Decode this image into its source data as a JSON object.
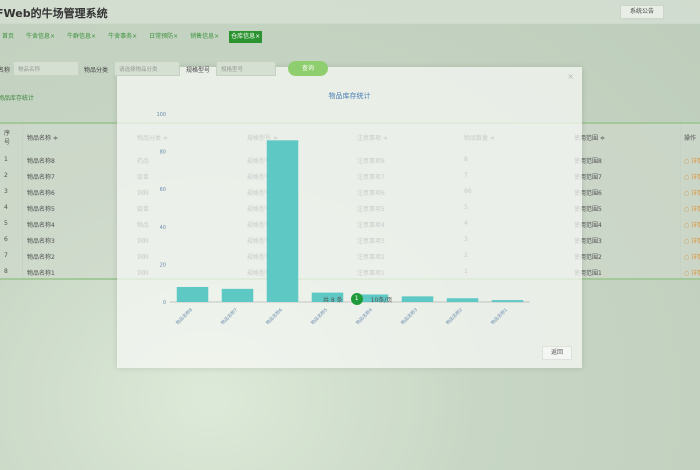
{
  "header": {
    "title": "FWeb的牛场管理系统",
    "notice_button": "系统公告"
  },
  "tabs": [
    "首页",
    "牛舍信息×",
    "牛群信息×",
    "牛舍事务×",
    "日常预防×",
    "销售信息×",
    "仓库信息×"
  ],
  "search": {
    "name_label": "名称",
    "name_placeholder": "物品名称",
    "category_label": "物品分类",
    "category_placeholder": "请选择物品分类",
    "spec_label": "规格型号",
    "spec_placeholder": "规格型号",
    "query_button": "查询"
  },
  "stat_button": "物品库存统计",
  "table": {
    "headers": [
      "序号",
      "物品名称 ≑",
      "物品分类 ≑",
      "规格型号 ≑",
      "注意事项 ≑",
      "物品数量 ≑",
      "使用范围 ≑",
      "操作"
    ],
    "rows": [
      [
        "1",
        "物品名称8",
        "药品",
        "规格型号8",
        "注意事项8",
        "8",
        "使用范围8",
        "详情"
      ],
      [
        "2",
        "物品名称7",
        "疫苗",
        "规格型号7",
        "注意事项7",
        "7",
        "使用范围7",
        "详情"
      ],
      [
        "3",
        "物品名称6",
        "饲料",
        "规格型号6",
        "注意事项6",
        "86",
        "使用范围6",
        "详情"
      ],
      [
        "4",
        "物品名称5",
        "疫苗",
        "规格型号5",
        "注意事项5",
        "5",
        "使用范围5",
        "详情"
      ],
      [
        "5",
        "物品名称4",
        "物品",
        "规格型号4",
        "注意事项4",
        "4",
        "使用范围4",
        "详情"
      ],
      [
        "6",
        "物品名称3",
        "饲料",
        "规格型号3",
        "注意事项3",
        "3",
        "使用范围3",
        "详情"
      ],
      [
        "7",
        "物品名称2",
        "饲料",
        "规格型号2",
        "注意事项2",
        "2",
        "使用范围2",
        "详情"
      ],
      [
        "8",
        "物品名称1",
        "饲料",
        "规格型号1",
        "注意事项1",
        "1",
        "使用范围1",
        "详情"
      ]
    ]
  },
  "pagination": {
    "total": "共 8 条",
    "current": "1",
    "size": "10条/页"
  },
  "modal": {
    "title": "物品库存统计",
    "close": "×",
    "back_button": "返回"
  },
  "chart_data": {
    "type": "bar",
    "title": "物品库存统计",
    "categories": [
      "物品名称8",
      "物品名称7",
      "物品名称6",
      "物品名称5",
      "物品名称4",
      "物品名称3",
      "物品名称2",
      "物品名称1"
    ],
    "values": [
      8,
      7,
      86,
      5,
      4,
      3,
      2,
      1
    ],
    "ylim": [
      0,
      100
    ],
    "yticks": [
      0,
      20,
      40,
      60,
      80,
      100
    ],
    "color": "#5ec8c4",
    "grid": false
  }
}
